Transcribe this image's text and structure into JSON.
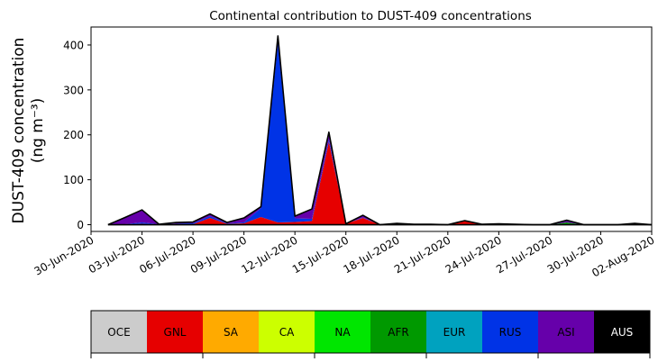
{
  "chart_data": {
    "type": "area",
    "stacked": true,
    "title": "Continental contribution to DUST-409 concentrations",
    "ylabel_line1": "DUST-409 concentration",
    "ylabel_line2": "(ng m⁻³)",
    "xlabel": "",
    "ylim": [
      -15,
      440
    ],
    "xlim": [
      "2020-06-30",
      "2020-08-02"
    ],
    "yticks": [
      0,
      100,
      200,
      300,
      400
    ],
    "xticks": [
      "30-Jun-2020",
      "03-Jul-2020",
      "06-Jul-2020",
      "09-Jul-2020",
      "12-Jul-2020",
      "15-Jul-2020",
      "18-Jul-2020",
      "21-Jul-2020",
      "24-Jul-2020",
      "27-Jul-2020",
      "30-Jul-2020",
      "02-Aug-2020"
    ],
    "grid": false,
    "legend": "bottom-colorbar",
    "dates": [
      "2020-07-01",
      "2020-07-02",
      "2020-07-03",
      "2020-07-04",
      "2020-07-05",
      "2020-07-06",
      "2020-07-07",
      "2020-07-08",
      "2020-07-09",
      "2020-07-10",
      "2020-07-11",
      "2020-07-12",
      "2020-07-13",
      "2020-07-14",
      "2020-07-15",
      "2020-07-16",
      "2020-07-17",
      "2020-07-18",
      "2020-07-19",
      "2020-07-20",
      "2020-07-21",
      "2020-07-22",
      "2020-07-23",
      "2020-07-24",
      "2020-07-25",
      "2020-07-26",
      "2020-07-27",
      "2020-07-28",
      "2020-07-29",
      "2020-07-30",
      "2020-07-31",
      "2020-08-01",
      "2020-08-02"
    ],
    "series": [
      {
        "name": "OCE",
        "color": "#cccccc",
        "values": [
          0,
          0,
          0,
          0,
          0,
          0,
          0,
          0,
          0,
          0,
          0,
          0,
          0,
          0,
          0,
          0,
          0,
          0,
          0,
          0,
          0,
          0,
          0,
          0,
          0,
          0,
          0,
          0,
          0,
          0,
          0,
          0,
          0
        ]
      },
      {
        "name": "GNL",
        "color": "#e60000",
        "values": [
          0,
          0,
          2,
          0,
          2,
          1,
          15,
          2,
          3,
          17,
          5,
          6,
          8,
          185,
          2,
          15,
          0,
          0,
          0,
          0,
          0,
          8,
          0,
          0,
          0,
          0,
          0,
          0,
          0,
          0,
          0,
          0,
          0
        ]
      },
      {
        "name": "SA",
        "color": "#ffaa00",
        "values": [
          0,
          0,
          0,
          0,
          0,
          0,
          0,
          0,
          0,
          0,
          0,
          0,
          0,
          0,
          0,
          0,
          0,
          0,
          0,
          0,
          0,
          0,
          0,
          0,
          0,
          0,
          0,
          0,
          0,
          0,
          0,
          0,
          0
        ]
      },
      {
        "name": "CA",
        "color": "#ccff00",
        "values": [
          0,
          0,
          0,
          0,
          0,
          0,
          0,
          0,
          0,
          0,
          0,
          0,
          0,
          0,
          0,
          0,
          0,
          0,
          0,
          0,
          0,
          0,
          0,
          0,
          0,
          0,
          0,
          0,
          0,
          0,
          0,
          0,
          0
        ]
      },
      {
        "name": "NA",
        "color": "#00e600",
        "values": [
          0,
          0,
          0,
          0,
          0,
          0,
          0,
          0,
          0,
          0,
          0,
          0,
          0,
          0,
          0,
          0,
          0,
          0,
          0,
          0,
          0,
          0,
          0,
          0,
          0,
          0,
          0,
          0,
          0,
          0,
          0,
          0,
          0
        ]
      },
      {
        "name": "AFR",
        "color": "#009900",
        "values": [
          0,
          0,
          0,
          0,
          0,
          0,
          0,
          0,
          0,
          0,
          0,
          0,
          0,
          0,
          0,
          0,
          0,
          0,
          0,
          0,
          0,
          0,
          0,
          2,
          0,
          0,
          0,
          5,
          0,
          0,
          0,
          2,
          0
        ]
      },
      {
        "name": "EUR",
        "color": "#00a2bf",
        "values": [
          0,
          0,
          0,
          0,
          0,
          0,
          0,
          0,
          0,
          0,
          0,
          0,
          0,
          0,
          0,
          0,
          0,
          0,
          0,
          0,
          0,
          0,
          0,
          0,
          0,
          0,
          0,
          0,
          0,
          0,
          0,
          0,
          0
        ]
      },
      {
        "name": "RUS",
        "color": "#0033e6",
        "values": [
          0,
          1,
          3,
          1,
          1,
          2,
          4,
          1,
          2,
          20,
          400,
          8,
          5,
          6,
          0,
          1,
          0,
          2,
          1,
          1,
          0,
          1,
          1,
          0,
          1,
          0,
          0,
          0,
          0,
          0,
          0,
          1,
          0
        ]
      },
      {
        "name": "ASI",
        "color": "#6600aa",
        "values": [
          0,
          15,
          28,
          0,
          2,
          3,
          5,
          2,
          10,
          3,
          15,
          5,
          22,
          15,
          0,
          5,
          0,
          1,
          0,
          0,
          0,
          0,
          0,
          0,
          0,
          0,
          0,
          5,
          0,
          0,
          0,
          0,
          0
        ]
      },
      {
        "name": "AUS",
        "color": "#000000",
        "values": [
          0,
          0,
          0,
          0,
          0,
          0,
          0,
          0,
          0,
          0,
          0,
          0,
          0,
          0,
          0,
          0,
          0,
          0,
          0,
          0,
          0,
          0,
          0,
          0,
          0,
          0,
          0,
          0,
          0,
          0,
          0,
          0,
          0
        ]
      }
    ]
  }
}
